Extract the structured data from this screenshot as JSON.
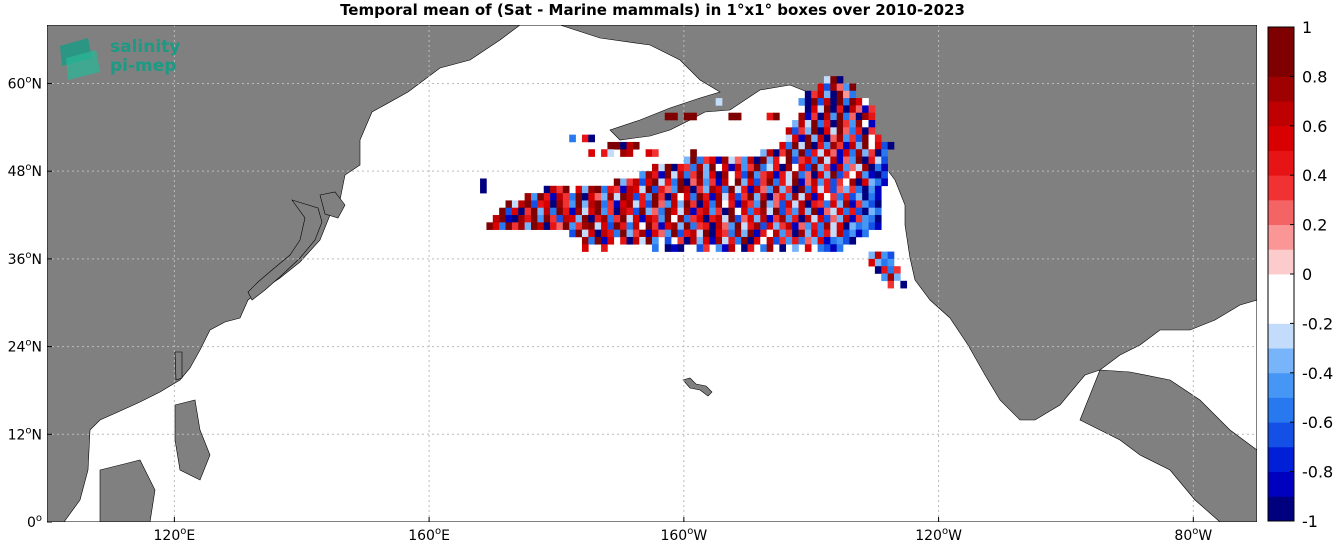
{
  "chart_data": {
    "type": "heatmap",
    "title": "Temporal mean of (Sat - Marine mammals) in 1°x1° boxes over 2010-2023",
    "logo_text": [
      "salinity",
      "pi-mep"
    ],
    "lon_range": [
      100,
      290
    ],
    "lat_range": [
      0,
      68
    ],
    "x_ticks": [
      {
        "lon": 120,
        "deg": "120",
        "hemi": "E"
      },
      {
        "lon": 160,
        "deg": "160",
        "hemi": "E"
      },
      {
        "lon": 200,
        "deg": "160",
        "hemi": "W"
      },
      {
        "lon": 240,
        "deg": "120",
        "hemi": "W"
      },
      {
        "lon": 280,
        "deg": "80",
        "hemi": "W"
      }
    ],
    "y_ticks": [
      {
        "lat": 0,
        "deg": "0",
        "hemi": ""
      },
      {
        "lat": 12,
        "deg": "12",
        "hemi": "N"
      },
      {
        "lat": 24,
        "deg": "24",
        "hemi": "N"
      },
      {
        "lat": 36,
        "deg": "36",
        "hemi": "N"
      },
      {
        "lat": 48,
        "deg": "48",
        "hemi": "N"
      },
      {
        "lat": 60,
        "deg": "60",
        "hemi": "N"
      }
    ],
    "grid": true,
    "land_color": "#808080",
    "ocean_color": "#ffffff",
    "colorbar": {
      "range": [
        -1,
        1
      ],
      "ticks": [
        "-1",
        "-0.8",
        "-0.6",
        "-0.4",
        "-0.2",
        "0",
        "0.2",
        "0.4",
        "0.6",
        "0.8",
        "1"
      ],
      "colors": [
        "#00007f",
        "#0000bf",
        "#0020d8",
        "#1450e6",
        "#2878f0",
        "#4696f5",
        "#78b4fa",
        "#c3dcfc",
        "#ffffff",
        "#ffffff",
        "#fccbcb",
        "#fa9696",
        "#f56464",
        "#f03232",
        "#e61414",
        "#d80000",
        "#bf0000",
        "#9f0000",
        "#7f0000",
        "#7f0000"
      ]
    },
    "cell_rows": [
      {
        "lat": 60,
        "lon_start": 222,
        "values": [
          -0.3,
          0.9,
          -0.9
        ]
      },
      {
        "lat": 59,
        "lon_start": 221,
        "values": [
          0.5,
          -0.7,
          0.7,
          0.2,
          -0.5,
          0.8
        ]
      },
      {
        "lat": 58,
        "lon_start": 219,
        "values": [
          -0.9,
          0.3,
          0.6,
          -0.4,
          -0.9,
          0.9,
          0.1,
          -0.6
        ]
      },
      {
        "lat": 57,
        "lon_start": 205,
        "values": [
          -0.3,
          0,
          0,
          0,
          0,
          0,
          0,
          0,
          0,
          0,
          0,
          0,
          0,
          -0.5,
          -0.9,
          0.8,
          -0.7,
          0.6,
          -0.9,
          0.9,
          -0.6,
          0.9,
          0.5,
          -0.2
        ]
      },
      {
        "lat": 56,
        "lon_start": 219,
        "values": [
          -0.9,
          0.5,
          -0.3,
          0.9,
          -0.9,
          0.4,
          -0.9,
          0.6,
          0.2,
          -0.8,
          0.3
        ]
      },
      {
        "lat": 55,
        "lon_start": 197,
        "values": [
          0.9,
          0.9,
          0,
          0.9,
          0.9,
          0,
          0,
          0,
          -0.2,
          0,
          0.9,
          0.9,
          0,
          0,
          0,
          -0.2,
          0.4,
          0.9,
          0,
          0,
          0,
          0.7,
          -0.8,
          0.3,
          -0.9,
          0.6,
          -0.5,
          0.9,
          -0.6,
          0.2,
          -0.9,
          0.7,
          0.4
        ]
      },
      {
        "lat": 54,
        "lon_start": 217,
        "values": [
          -0.4,
          0.6,
          -0.3,
          0.9,
          -0.6,
          0.4,
          -0.9,
          0.8,
          0.3,
          -0.5,
          0.7,
          -0.2,
          -0.8
        ]
      },
      {
        "lat": 53,
        "lon_start": 216,
        "values": [
          0.6,
          -0.7,
          0.3,
          -0.4,
          0.9,
          -0.9,
          0.5,
          -0.3,
          0.8,
          0.2,
          -0.6,
          0.4,
          -0.9,
          0.3
        ]
      },
      {
        "lat": 52,
        "lon_start": 182,
        "values": [
          -0.6,
          0,
          0.4,
          -0.9,
          0,
          0,
          0,
          0,
          0,
          0,
          0,
          0,
          0,
          0,
          0,
          0,
          0,
          0,
          0,
          0,
          0,
          0,
          0,
          0,
          0,
          0,
          0,
          0,
          0,
          0,
          0,
          0,
          0,
          0,
          -0.3,
          0.5,
          -0.8,
          0.9,
          -0.4,
          0.6,
          -0.9,
          0.2,
          0.7,
          -0.5,
          0.3,
          -0.7,
          0.8,
          -0.2,
          0.4
        ]
      },
      {
        "lat": 51,
        "lon_start": 188,
        "values": [
          0.9,
          0.8,
          -0.9,
          0.6,
          0.9,
          0,
          0,
          0,
          0,
          0,
          0,
          0,
          0,
          0,
          0,
          0,
          0,
          0,
          0,
          0,
          0,
          0,
          0,
          0,
          0,
          0,
          0,
          0.5,
          -0.6,
          0.8,
          -0.3,
          0.9,
          -0.9,
          0.4,
          -0.5,
          0.7,
          0.3,
          -0.8,
          0.6,
          -0.4,
          0.9,
          -0.2,
          0.5,
          -0.7,
          -0.9
        ]
      },
      {
        "lat": 50,
        "lon_start": 185,
        "values": [
          0.5,
          0,
          0.4,
          -0.3,
          0,
          0.7,
          0.6,
          0,
          -0.2,
          0.5,
          0.3,
          0,
          0,
          0,
          0,
          0,
          0.8,
          0,
          0,
          0,
          0,
          0,
          0,
          0,
          0,
          0,
          0,
          -0.4,
          0.6,
          -0.9,
          0.3,
          0.8,
          -0.5,
          0.9,
          -0.7,
          0.4,
          -0.3,
          0.6,
          0.2,
          -0.8,
          0.5,
          -0.6,
          0.7,
          -0.4,
          0.3,
          -0.9,
          -0.6
        ]
      },
      {
        "lat": 49,
        "lon_start": 200,
        "values": [
          -0.4,
          0.9,
          -0.6,
          0.3,
          0.5,
          -0.8,
          0.7,
          -0.3,
          0.2,
          -0.5,
          0.6,
          -0.9,
          0.8,
          -0.4,
          0.4,
          -0.2,
          0.9,
          -0.7,
          0.3,
          0.5,
          -0.6,
          0.7,
          -0.3,
          0.6,
          -0.8,
          0.2,
          -0.5,
          0.8,
          -0.9,
          0.4,
          -0.3,
          -0.7
        ]
      },
      {
        "lat": 48,
        "lon_start": 195,
        "values": [
          0.6,
          -0.3,
          0.8,
          -0.9,
          0.4,
          0.3,
          -0.6,
          0.7,
          -0.4,
          0.9,
          -0.2,
          0.5,
          -0.8,
          0.6,
          -0.5,
          0.3,
          0.8,
          -0.6,
          -0.3,
          0.4,
          -0.9,
          0.7,
          -0.2,
          0.5,
          -0.7,
          0.9,
          -0.4,
          0.3,
          -0.8,
          0.6,
          -0.5,
          0.2,
          -0.3,
          0.7,
          -0.9,
          -0.6,
          -0.8
        ]
      },
      {
        "lat": 47,
        "lon_start": 193,
        "values": [
          -0.5,
          0.7,
          0.4,
          -0.8,
          0.9,
          -0.3,
          0.6,
          -0.6,
          0.3,
          0.8,
          -0.4,
          0.5,
          -0.9,
          0.7,
          -0.2,
          0.4,
          -0.7,
          0.9,
          -0.5,
          0.3,
          0.6,
          -0.8,
          0.4,
          -0.3,
          0.7,
          -0.6,
          0.2,
          -0.9,
          0.5,
          -0.4,
          0.8,
          -0.7,
          0.3,
          -0.2,
          0.6,
          -0.5,
          -0.8,
          -0.9,
          -0.7
        ]
      },
      {
        "lat": 46,
        "lon_start": 189,
        "values": [
          0.8,
          -0.4,
          0.3,
          0.6,
          -0.7,
          0.5,
          0.9,
          -0.3,
          0.4,
          -0.6,
          0.8,
          -0.9,
          0.2,
          0.7,
          -0.5,
          0.3,
          -0.8,
          0.6,
          -0.2,
          0.9,
          -0.4,
          0.5,
          -0.7,
          0.3,
          0.8,
          -0.6,
          0.4,
          -0.3,
          0.9,
          -0.8,
          0.2,
          0.6,
          -0.5,
          0.4,
          -0.7,
          0.3,
          -0.2,
          0.7,
          -0.9,
          0.5,
          -0.4,
          -0.6,
          -0.8
        ]
      },
      {
        "lat": 45,
        "lon_start": 178,
        "values": [
          -0.9,
          0.6,
          0.3,
          0.8,
          0,
          0.5,
          -0.4,
          0.7,
          0.9,
          -0.6,
          0.4,
          0.3,
          -0.8,
          0.6,
          0.5,
          -0.3,
          0.9,
          -0.7,
          0.4,
          0.2,
          -0.5,
          0.8,
          0.6,
          -0.9,
          0.3,
          -0.4,
          0.7,
          0.5,
          -0.6,
          0.9,
          -0.3,
          0.4,
          -0.8,
          0.6,
          0.2,
          -0.5,
          0.7,
          -0.4,
          0.3,
          -0.9,
          0.8,
          -0.6,
          0.5,
          -0.3,
          0.4,
          -0.7,
          0.2,
          -0.4,
          0.3,
          -0.6,
          -0.9,
          -0.5,
          -0.8
        ]
      },
      {
        "lat": 44,
        "lon_start": 175,
        "values": [
          0.7,
          -0.5,
          0.9,
          0.4,
          -0.8,
          0.6,
          0.3,
          -0.6,
          0.8,
          -0.9,
          0.5,
          0.2,
          -0.4,
          0.7,
          -0.3,
          0.9,
          0.6,
          -0.7,
          0.4,
          -0.5,
          0.8,
          0.3,
          -0.9,
          0.6,
          -0.2,
          0.5,
          -0.6,
          0.9,
          0.4,
          -0.8,
          0.7,
          -0.3,
          0.5,
          -0.7,
          0.3,
          0.8,
          -0.4,
          0.6,
          -0.9,
          0.2,
          0.4,
          -0.5,
          0.7,
          -0.3,
          0.6,
          -0.8,
          0.5,
          -0.2,
          0.3,
          -0.6,
          0.4,
          -0.7,
          -0.4,
          -0.9,
          -0.6,
          -0.8
        ]
      },
      {
        "lat": 43,
        "lon_start": 172,
        "values": [
          0.8,
          -0.3,
          0.6,
          0.9,
          -0.7,
          0.4,
          0.5,
          -0.9,
          0.7,
          0.3,
          -0.5,
          0.8,
          -0.4,
          0.6,
          0.9,
          -0.6,
          0.3,
          -0.8,
          0.5,
          0.7,
          -0.3,
          0.4,
          -0.7,
          0.9,
          0.2,
          -0.5,
          0.6,
          -0.4,
          0.8,
          0.3,
          -0.9,
          0.5,
          -0.6,
          0.7,
          -0.2,
          0.4,
          -0.8,
          0.6,
          0.3,
          -0.5,
          0.9,
          -0.4,
          0.2,
          -0.7,
          0.5,
          -0.3,
          0.6,
          -0.9,
          0.4,
          0.3,
          -0.6,
          0.5,
          -0.4,
          0.7,
          -0.8,
          0.3,
          -0.5,
          -0.7,
          -0.9
        ]
      },
      {
        "lat": 42,
        "lon_start": 171,
        "values": [
          0.9,
          -0.7,
          0.5,
          -0.9,
          0.3,
          0.8,
          -0.4,
          0.6,
          -0.6,
          0.9,
          0.4,
          -0.8,
          0.7,
          -0.3,
          0.5,
          0.8,
          -0.5,
          0.3,
          -0.9,
          0.6,
          0.4,
          -0.7,
          0.9,
          -0.4,
          0.2,
          -0.6,
          0.8,
          0.5,
          -0.3,
          0.7,
          -0.8,
          0.4,
          0.6,
          -0.5,
          0.3,
          -0.9,
          0.8,
          -0.2,
          0.5,
          -0.6,
          0.4,
          0.7,
          -0.3,
          0.9,
          -0.7,
          0.3,
          -0.5,
          0.6,
          -0.4,
          0.8,
          -0.8,
          0.2,
          -0.3,
          0.5,
          -0.6,
          0.4,
          -0.7,
          -0.9,
          -0.4,
          -0.6
        ]
      },
      {
        "lat": 41,
        "lon_start": 170,
        "values": [
          0.6,
          0.9,
          -0.8,
          -0.9,
          0.7,
          0.4,
          0.8,
          -0.5,
          0.9,
          0.3,
          -0.7,
          0.6,
          0.5,
          -0.4,
          0.8,
          -0.9,
          0.4,
          0.7,
          -0.6,
          0.3,
          0.9,
          -0.3,
          0.5,
          -0.8,
          0.6,
          0.4,
          -0.5,
          0.8,
          -0.2,
          0.7,
          -0.6,
          0.3,
          0.5,
          -0.9,
          0.4,
          0.6,
          -0.3,
          0.8,
          -0.7,
          0.2,
          0.5,
          -0.4,
          0.6,
          -0.8,
          0.3,
          0.7,
          -0.5,
          0.4,
          -0.9,
          0.6,
          -0.3,
          0.5,
          -0.7,
          0.2,
          -0.4,
          0.6,
          -0.8,
          0.3,
          -0.5,
          -0.6,
          -0.9
        ]
      },
      {
        "lat": 40,
        "lon_start": 169,
        "values": [
          0.8,
          0.5,
          -0.6,
          0.9,
          0.3,
          0.7,
          -0.4,
          0.8,
          0.6,
          -0.9,
          0.4,
          0.2,
          0.9,
          -0.5,
          0.3,
          0.7,
          0.8,
          -0.3,
          0.5,
          -0.7,
          0.9,
          0.4,
          -0.6,
          0.6,
          -0.2,
          0.8,
          0.3,
          -0.8,
          0.5,
          0.7,
          -0.4,
          0.9,
          -0.6,
          0.3,
          0.4,
          -0.9,
          0.6,
          0.2,
          -0.5,
          0.8,
          -0.3,
          0.4,
          0.7,
          -0.7,
          0.5,
          -0.4,
          0.3,
          0.6,
          -0.8,
          0.2,
          -0.5,
          0.4,
          -0.6,
          0.7,
          -0.3,
          0.5,
          -0.9,
          -0.4,
          -0.6,
          -0.5,
          -0.7,
          -0.8
        ]
      },
      {
        "lat": 39,
        "lon_start": 182,
        "values": [
          -0.7,
          0.8,
          -0.3,
          0.5,
          -0.9,
          0.6,
          0.4,
          -0.6,
          0.9,
          -0.4,
          0.3,
          0.7,
          -0.8,
          0.5,
          0.2,
          -0.5,
          0.8,
          -0.7,
          0.4,
          0.6,
          -0.3,
          0.9,
          -0.9,
          0.5,
          0.3,
          -0.6,
          0.7,
          -0.4,
          0.8,
          -0.8,
          0.4,
          -0.2,
          0.6,
          -0.5,
          0.3,
          -0.9,
          0.7,
          -0.4,
          0.5,
          -0.6,
          0.4,
          -0.3,
          0.6,
          -0.7,
          -0.5,
          -0.8,
          -0.6
        ]
      },
      {
        "lat": 38,
        "lon_start": 184,
        "values": [
          0.7,
          -0.6,
          0.9,
          -0.8,
          0.5,
          0,
          0.4,
          -0.9,
          0.6,
          -0.3,
          0.8,
          -0.5,
          0,
          -0.7,
          0,
          0.3,
          -0.9,
          0.6,
          -0.4,
          0.5,
          -0.8,
          0.7,
          -0.3,
          0.4,
          -0.6,
          0.8,
          -0.9,
          0.5,
          -0.2,
          0.6,
          -0.7,
          0.3,
          -0.5,
          0.4,
          -0.6,
          0.2,
          -0.4,
          0.5,
          -0.8,
          -0.6,
          -0.5,
          -0.7,
          -0.9
        ]
      },
      {
        "lat": 37,
        "lon_start": 184,
        "values": [
          0.5,
          0,
          0,
          0.4,
          0,
          0,
          0,
          0,
          0,
          0,
          0,
          -0.6,
          0,
          -0.9,
          -0.8,
          -0.9,
          0,
          0,
          -0.7,
          0.3,
          0,
          -0.5,
          -0.8,
          0.6,
          0,
          -0.9,
          0.4,
          0,
          -0.6,
          0.7,
          0,
          -0.9,
          0,
          -0.4,
          0,
          0.5,
          0,
          -0.6,
          -0.7,
          -0.8,
          -0.6
        ]
      },
      {
        "lat": 36,
        "lon_start": 229,
        "values": [
          -0.4,
          0.6,
          -0.5,
          -0.7
        ]
      },
      {
        "lat": 35,
        "lon_start": 229,
        "values": [
          0.5,
          -0.4,
          -0.6,
          -0.5
        ]
      },
      {
        "lat": 34,
        "lon_start": 230,
        "values": [
          -0.9,
          0.4,
          -0.6,
          0.3
        ]
      },
      {
        "lat": 33,
        "lon_start": 231,
        "values": [
          -0.5,
          0.7,
          -0.4
        ]
      },
      {
        "lat": 32,
        "lon_start": 232,
        "values": [
          0.3,
          -0.2,
          -0.9
        ]
      }
    ],
    "isolated_cells": [
      {
        "lat": 46,
        "lon": 168,
        "value": -0.95
      },
      {
        "lat": 45,
        "lon": 168,
        "value": -0.95
      }
    ]
  }
}
